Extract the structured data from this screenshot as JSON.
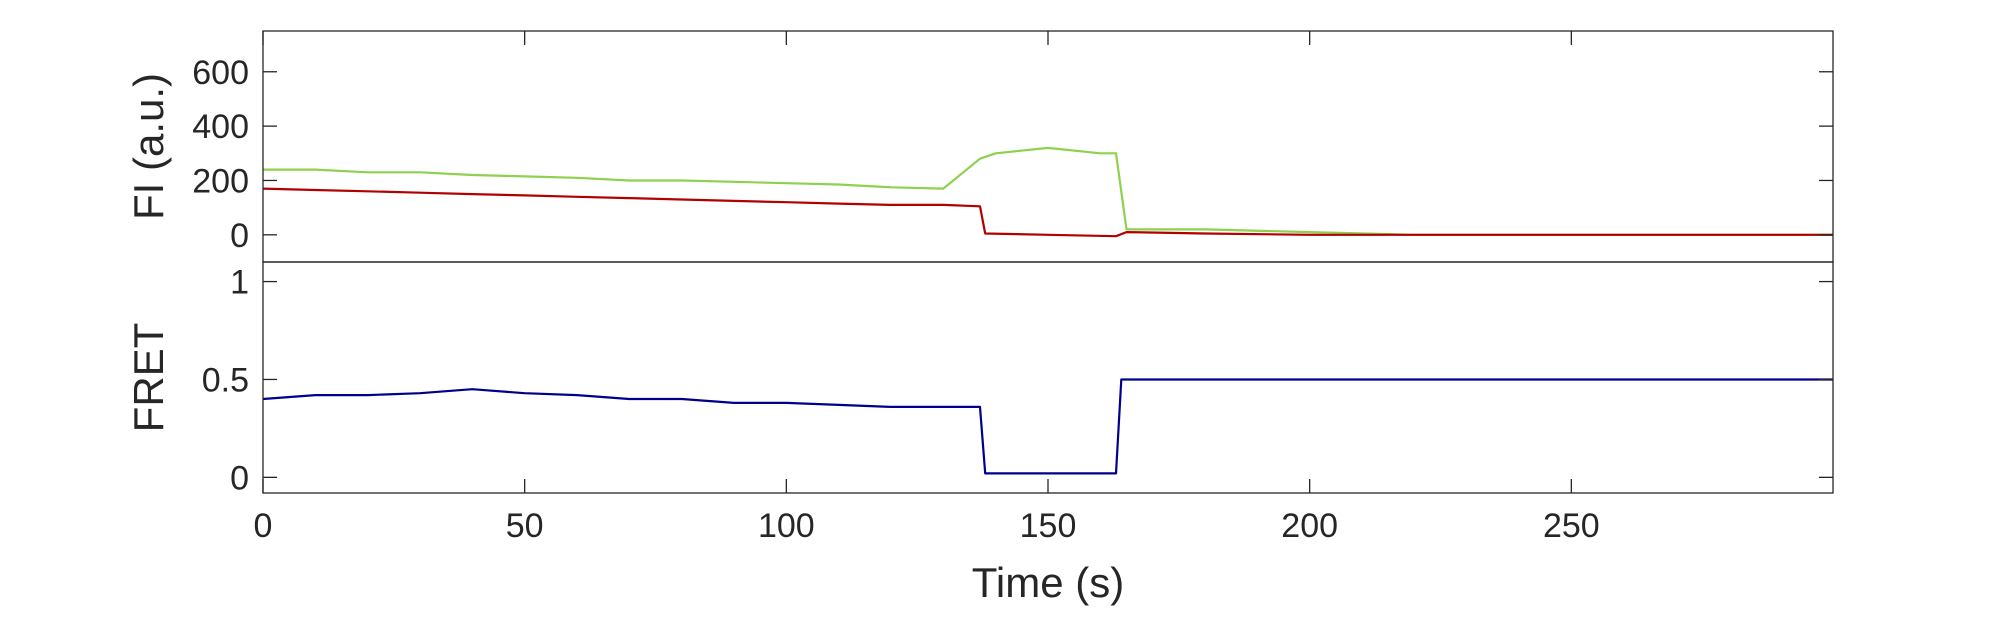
{
  "chart_data": [
    {
      "panel": "top",
      "type": "line",
      "xlabel": "",
      "ylabel": "FI (a.u.)",
      "xlim": [
        0,
        300
      ],
      "ylim": [
        -100,
        750
      ],
      "yticks": [
        0,
        200,
        400,
        600
      ],
      "ytick_labels": [
        "0",
        "200",
        "400",
        "600"
      ],
      "grid": false,
      "series": [
        {
          "color": "#8ed14f",
          "x": [
            0,
            10,
            20,
            30,
            40,
            50,
            60,
            70,
            80,
            90,
            100,
            110,
            120,
            130,
            137,
            140,
            150,
            160,
            163,
            165,
            180,
            200,
            220,
            240,
            260,
            280,
            300
          ],
          "values": [
            240,
            240,
            230,
            230,
            220,
            215,
            210,
            200,
            200,
            195,
            190,
            185,
            175,
            170,
            280,
            300,
            320,
            300,
            300,
            20,
            20,
            10,
            0,
            0,
            0,
            0,
            0
          ]
        },
        {
          "color": "#b20000",
          "x": [
            0,
            10,
            20,
            30,
            40,
            50,
            60,
            70,
            80,
            90,
            100,
            110,
            120,
            130,
            137,
            138,
            150,
            163,
            165,
            180,
            200,
            220,
            240,
            260,
            280,
            300
          ],
          "values": [
            170,
            165,
            160,
            155,
            150,
            145,
            140,
            135,
            130,
            125,
            120,
            115,
            110,
            110,
            105,
            5,
            0,
            -5,
            10,
            5,
            0,
            0,
            0,
            0,
            0,
            0
          ]
        }
      ]
    },
    {
      "panel": "bottom",
      "type": "line",
      "xlabel": "Time (s)",
      "ylabel": "FRET",
      "xlim": [
        0,
        300
      ],
      "ylim": [
        -0.08,
        1.1
      ],
      "xticks": [
        0,
        50,
        100,
        150,
        200,
        250
      ],
      "xtick_labels": [
        "0",
        "50",
        "100",
        "150",
        "200",
        "250"
      ],
      "yticks": [
        0,
        0.5,
        1
      ],
      "ytick_labels": [
        "0",
        "0.5",
        "1"
      ],
      "grid": false,
      "series": [
        {
          "color": "#00008b",
          "x": [
            0,
            10,
            20,
            30,
            40,
            50,
            60,
            70,
            80,
            90,
            100,
            110,
            120,
            130,
            137,
            138,
            150,
            163,
            164,
            200,
            250,
            300
          ],
          "values": [
            0.4,
            0.42,
            0.42,
            0.43,
            0.45,
            0.43,
            0.42,
            0.4,
            0.4,
            0.38,
            0.38,
            0.37,
            0.36,
            0.36,
            0.36,
            0.02,
            0.02,
            0.02,
            0.5,
            0.5,
            0.5,
            0.5
          ]
        }
      ]
    }
  ]
}
